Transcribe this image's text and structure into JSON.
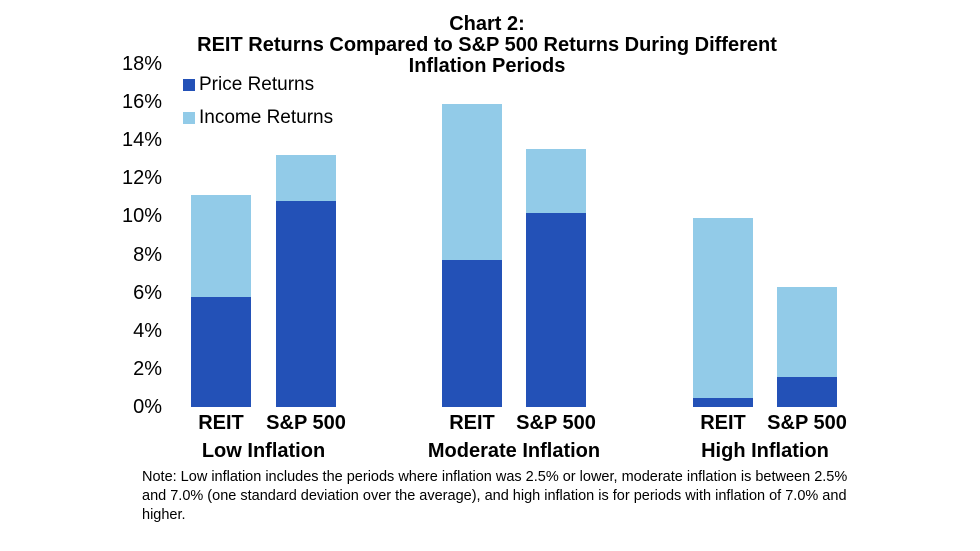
{
  "colors": {
    "price_return": "#2351b7",
    "income_return": "#92cbe8",
    "text": "#000000",
    "background": "#ffffff"
  },
  "chart_data": {
    "type": "bar",
    "stacked": true,
    "title_lines": [
      "Chart 2:",
      "REIT Returns Compared to S&P 500 Returns During Different",
      "Inflation Periods"
    ],
    "legend_position": "top-left",
    "legend": [
      {
        "name": "Price Returns",
        "color": "#2351b7"
      },
      {
        "name": "Income Returns",
        "color": "#92cbe8"
      }
    ],
    "y_ticks": [
      "18%",
      "16%",
      "14%",
      "12%",
      "10%",
      "8%",
      "6%",
      "4%",
      "2%",
      "0%"
    ],
    "ylim": [
      0,
      18
    ],
    "y_unit": "%",
    "grid": false,
    "groups": [
      {
        "label": "Low Inflation",
        "bars": [
          {
            "label": "REIT",
            "price_return": 5.8,
            "income_return": 5.3,
            "total": 11.1
          },
          {
            "label": "S&P 500",
            "price_return": 10.8,
            "income_return": 2.4,
            "total": 13.2
          }
        ]
      },
      {
        "label": "Moderate Inflation",
        "bars": [
          {
            "label": "REIT",
            "price_return": 7.7,
            "income_return": 8.2,
            "total": 15.9
          },
          {
            "label": "S&P 500",
            "price_return": 10.2,
            "income_return": 3.3,
            "total": 13.5
          }
        ]
      },
      {
        "label": "High Inflation",
        "bars": [
          {
            "label": "REIT",
            "price_return": 0.5,
            "income_return": 9.4,
            "total": 9.9
          },
          {
            "label": "S&P 500",
            "price_return": 1.6,
            "income_return": 4.7,
            "total": 6.3
          }
        ]
      }
    ],
    "note": "Note: Low inflation includes the periods where inflation was 2.5% or lower, moderate inflation is between 2.5% and 7.0% (one standard deviation over the average), and high inflation is for periods with inflation of 7.0% and higher."
  }
}
